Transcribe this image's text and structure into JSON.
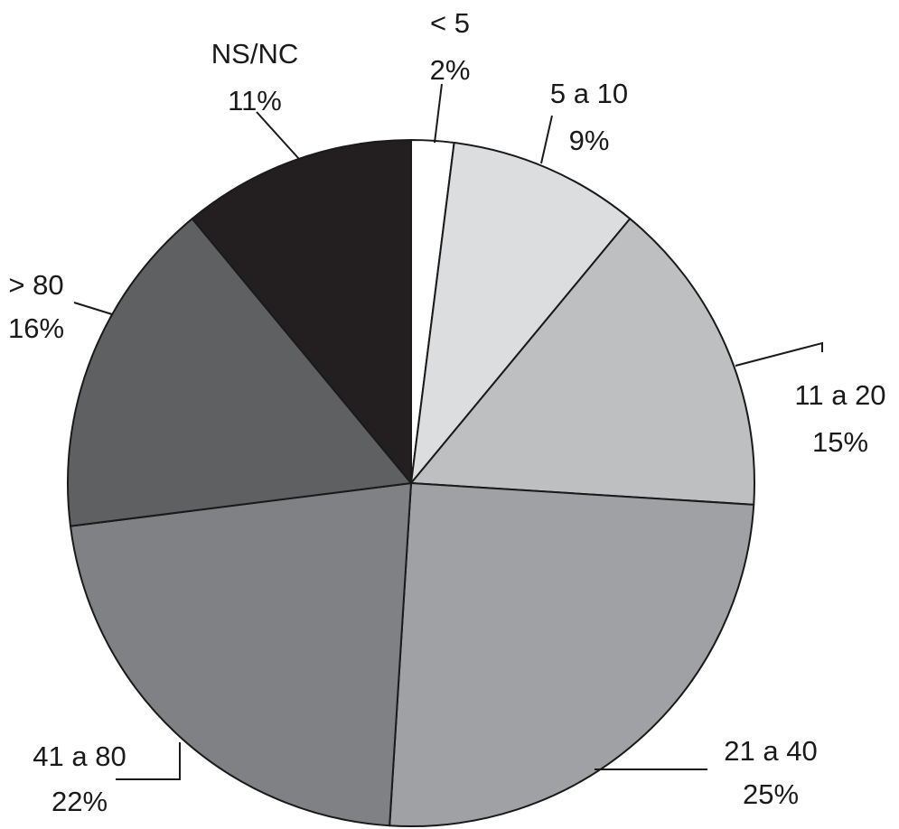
{
  "chart_data": {
    "type": "pie",
    "title": "",
    "slices": [
      {
        "label": "< 5",
        "value": 2,
        "pct": "2%",
        "color": "#ffffff"
      },
      {
        "label": "5 a 10",
        "value": 9,
        "pct": "9%",
        "color": "#dcdddf"
      },
      {
        "label": "11 a 20",
        "value": 15,
        "pct": "15%",
        "color": "#bebfc1"
      },
      {
        "label": "21 a 40",
        "value": 25,
        "pct": "25%",
        "color": "#a0a1a4"
      },
      {
        "label": "41 a 80",
        "value": 22,
        "pct": "22%",
        "color": "#808185"
      },
      {
        "label": "> 80",
        "value": 16,
        "pct": "16%",
        "color": "#5f6062"
      },
      {
        "label": "NS/NC",
        "value": 11,
        "pct": "11%",
        "color": "#231f20"
      }
    ],
    "start_angle": "12 o'clock",
    "direction": "clockwise",
    "legend": "none"
  }
}
